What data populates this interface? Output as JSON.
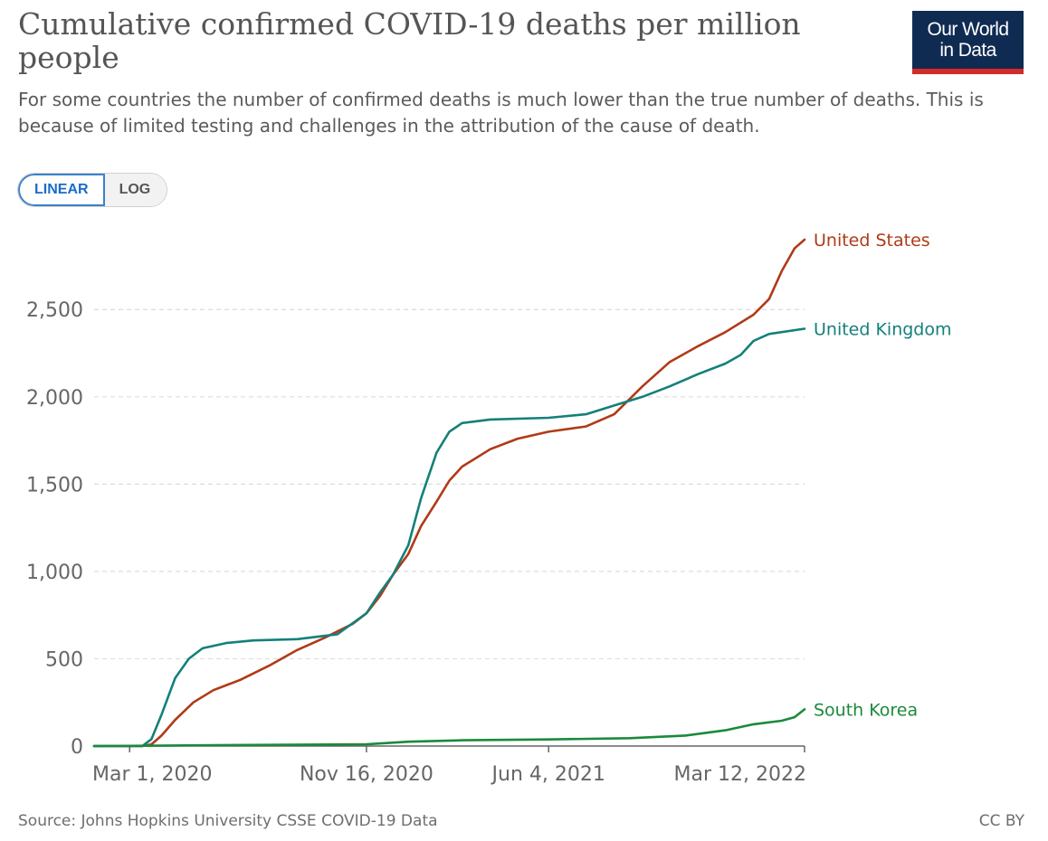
{
  "header": {
    "title": "Cumulative confirmed COVID-19 deaths per million people",
    "subtitle": "For some countries the number of confirmed deaths is much lower than the true number of deaths. This is because of limited testing and challenges in the attribution of the cause of death.",
    "logo_line1": "Our World",
    "logo_line2": "in Data"
  },
  "controls": {
    "linear_label": "LINEAR",
    "log_label": "LOG",
    "selected": "LINEAR"
  },
  "footer": {
    "source": "Source: Johns Hopkins University CSSE COVID-19 Data",
    "license": "CC BY"
  },
  "colors": {
    "united_states": "#b03a17",
    "united_kingdom": "#14807a",
    "south_korea": "#1a8a3c",
    "grid": "#dddddd",
    "axis": "#666666"
  },
  "chart_data": {
    "type": "line",
    "title": "Cumulative confirmed COVID-19 deaths per million people",
    "xlabel": "",
    "ylabel": "",
    "ylim": [
      0,
      2900
    ],
    "xlim": [
      "2020-01-22",
      "2022-03-12"
    ],
    "grid": true,
    "legend": "right-end-labels",
    "yticks": [
      0,
      500,
      1000,
      1500,
      2000,
      2500
    ],
    "ytick_labels": [
      "0",
      "500",
      "1,000",
      "1,500",
      "2,000",
      "2,500"
    ],
    "xticks": [
      "2020-03-01",
      "2020-11-16",
      "2021-06-04",
      "2022-03-12"
    ],
    "xtick_labels": [
      "Mar 1, 2020",
      "Nov 16, 2020",
      "Jun 4, 2021",
      "Mar 12, 2022"
    ],
    "series": [
      {
        "name": "United States",
        "color": "#b03a17",
        "points": [
          [
            "2020-01-22",
            0
          ],
          [
            "2020-03-15",
            0
          ],
          [
            "2020-03-25",
            10
          ],
          [
            "2020-04-05",
            60
          ],
          [
            "2020-04-20",
            150
          ],
          [
            "2020-05-10",
            250
          ],
          [
            "2020-06-01",
            320
          ],
          [
            "2020-07-01",
            380
          ],
          [
            "2020-08-01",
            460
          ],
          [
            "2020-09-01",
            550
          ],
          [
            "2020-10-01",
            620
          ],
          [
            "2020-11-01",
            700
          ],
          [
            "2020-11-16",
            760
          ],
          [
            "2020-12-01",
            860
          ],
          [
            "2020-12-15",
            980
          ],
          [
            "2021-01-01",
            1100
          ],
          [
            "2021-01-15",
            1260
          ],
          [
            "2021-02-01",
            1400
          ],
          [
            "2021-02-15",
            1520
          ],
          [
            "2021-03-01",
            1600
          ],
          [
            "2021-04-01",
            1700
          ],
          [
            "2021-05-01",
            1760
          ],
          [
            "2021-06-04",
            1800
          ],
          [
            "2021-07-15",
            1830
          ],
          [
            "2021-08-15",
            1900
          ],
          [
            "2021-09-15",
            2060
          ],
          [
            "2021-10-15",
            2200
          ],
          [
            "2021-11-15",
            2290
          ],
          [
            "2021-12-15",
            2370
          ],
          [
            "2022-01-15",
            2470
          ],
          [
            "2022-02-01",
            2560
          ],
          [
            "2022-02-15",
            2720
          ],
          [
            "2022-03-01",
            2850
          ],
          [
            "2022-03-12",
            2900
          ]
        ]
      },
      {
        "name": "United Kingdom",
        "color": "#14807a",
        "points": [
          [
            "2020-01-22",
            0
          ],
          [
            "2020-03-15",
            0
          ],
          [
            "2020-03-25",
            40
          ],
          [
            "2020-04-05",
            180
          ],
          [
            "2020-04-20",
            390
          ],
          [
            "2020-05-05",
            500
          ],
          [
            "2020-05-20",
            560
          ],
          [
            "2020-06-15",
            590
          ],
          [
            "2020-07-15",
            605
          ],
          [
            "2020-09-01",
            612
          ],
          [
            "2020-10-15",
            640
          ],
          [
            "2020-11-16",
            760
          ],
          [
            "2020-12-01",
            880
          ],
          [
            "2020-12-15",
            980
          ],
          [
            "2021-01-01",
            1150
          ],
          [
            "2021-01-15",
            1420
          ],
          [
            "2021-02-01",
            1680
          ],
          [
            "2021-02-15",
            1800
          ],
          [
            "2021-03-01",
            1850
          ],
          [
            "2021-04-01",
            1870
          ],
          [
            "2021-06-04",
            1880
          ],
          [
            "2021-07-15",
            1900
          ],
          [
            "2021-08-15",
            1950
          ],
          [
            "2021-09-15",
            2000
          ],
          [
            "2021-10-15",
            2060
          ],
          [
            "2021-11-15",
            2130
          ],
          [
            "2021-12-15",
            2190
          ],
          [
            "2022-01-01",
            2240
          ],
          [
            "2022-01-15",
            2320
          ],
          [
            "2022-02-01",
            2360
          ],
          [
            "2022-03-12",
            2390
          ]
        ]
      },
      {
        "name": "South Korea",
        "color": "#1a8a3c",
        "points": [
          [
            "2020-01-22",
            0
          ],
          [
            "2020-03-01",
            1
          ],
          [
            "2020-06-01",
            5
          ],
          [
            "2020-11-16",
            10
          ],
          [
            "2021-01-01",
            25
          ],
          [
            "2021-03-01",
            33
          ],
          [
            "2021-06-04",
            38
          ],
          [
            "2021-09-01",
            45
          ],
          [
            "2021-11-01",
            60
          ],
          [
            "2021-12-15",
            90
          ],
          [
            "2022-01-15",
            125
          ],
          [
            "2022-02-15",
            145
          ],
          [
            "2022-03-01",
            165
          ],
          [
            "2022-03-12",
            210
          ]
        ]
      }
    ]
  }
}
